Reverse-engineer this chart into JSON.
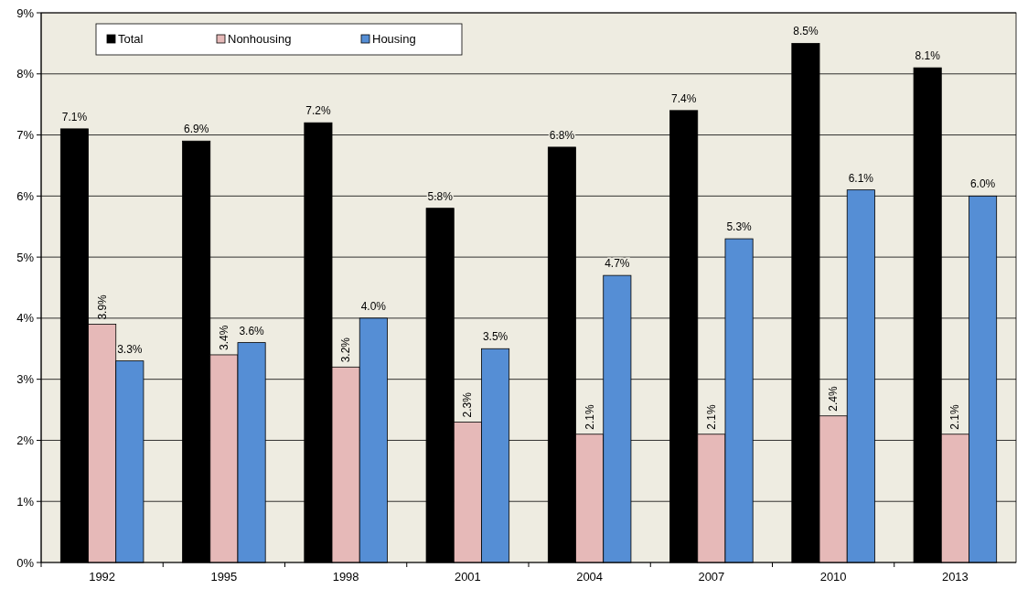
{
  "chart_data": {
    "type": "bar",
    "categories": [
      "1992",
      "1995",
      "1998",
      "2001",
      "2004",
      "2007",
      "2010",
      "2013"
    ],
    "series": [
      {
        "name": "Total",
        "color": "#000000",
        "values": [
          7.1,
          6.9,
          7.2,
          5.8,
          6.8,
          7.4,
          8.5,
          8.1
        ],
        "value_labels": [
          "7.1%",
          "6.9%",
          "7.2%",
          "5.8%",
          "6.8%",
          "7.4%",
          "8.5%",
          "8.1%"
        ]
      },
      {
        "name": "Nonhousing",
        "color": "#e6b9b8",
        "values": [
          3.9,
          3.4,
          3.2,
          2.3,
          2.1,
          2.1,
          2.4,
          2.1
        ],
        "value_labels": [
          "3.9%",
          "3.4%",
          "3.2%",
          "2.3%",
          "2.1%",
          "2.1%",
          "2.4%",
          "2.1%"
        ]
      },
      {
        "name": "Housing",
        "color": "#558ed5",
        "values": [
          3.3,
          3.6,
          4.0,
          3.5,
          4.7,
          5.3,
          6.1,
          6.0
        ],
        "value_labels": [
          "3.3%",
          "3.6%",
          "4.0%",
          "3.5%",
          "4.7%",
          "5.3%",
          "6.1%",
          "6.0%"
        ]
      }
    ],
    "ylim": [
      0,
      9
    ],
    "yticks": [
      {
        "value": 0,
        "label": "0%"
      },
      {
        "value": 1,
        "label": "1%"
      },
      {
        "value": 2,
        "label": "2%"
      },
      {
        "value": 3,
        "label": "3%"
      },
      {
        "value": 4,
        "label": "4%"
      },
      {
        "value": 5,
        "label": "5%"
      },
      {
        "value": 6,
        "label": "6%"
      },
      {
        "value": 7,
        "label": "7%"
      },
      {
        "value": 8,
        "label": "8%"
      },
      {
        "value": 9,
        "label": "9%"
      }
    ],
    "grid": "y",
    "legend": "top left"
  }
}
